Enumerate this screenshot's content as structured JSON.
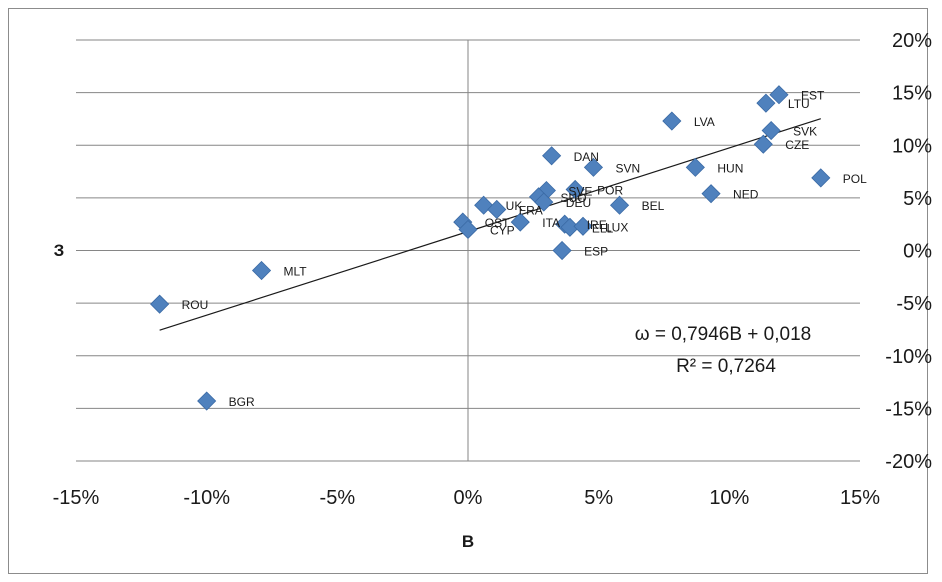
{
  "chart_data": {
    "type": "scatter",
    "title": "",
    "xlabel": "B",
    "ylabel": "З",
    "xlim": [
      -0.15,
      0.15
    ],
    "ylim": [
      -0.2,
      0.2
    ],
    "x_ticks": [
      -0.15,
      -0.1,
      -0.05,
      0,
      0.05,
      0.1,
      0.15
    ],
    "x_tick_labels": [
      "-15%",
      "-10%",
      "-5%",
      "0%",
      "5%",
      "10%",
      "15%"
    ],
    "y_ticks": [
      0.2,
      0.15,
      0.1,
      0.05,
      0,
      -0.05,
      -0.1,
      -0.15,
      -0.2
    ],
    "y_tick_labels": [
      "20%",
      "15%",
      "10%",
      "5%",
      "0%",
      "-5%",
      "-10%",
      "-15%",
      "-20%"
    ],
    "grid": "horizontal",
    "marker_color": "#4f81bd",
    "points": [
      {
        "label": "EST",
        "x": 0.119,
        "y": 0.148
      },
      {
        "label": "LTU",
        "x": 0.114,
        "y": 0.14
      },
      {
        "label": "LVA",
        "x": 0.078,
        "y": 0.123
      },
      {
        "label": "SVK",
        "x": 0.116,
        "y": 0.114
      },
      {
        "label": "CZE",
        "x": 0.113,
        "y": 0.101
      },
      {
        "label": "DAN",
        "x": 0.032,
        "y": 0.09
      },
      {
        "label": "SVN",
        "x": 0.048,
        "y": 0.079
      },
      {
        "label": "HUN",
        "x": 0.087,
        "y": 0.079
      },
      {
        "label": "POL",
        "x": 0.135,
        "y": 0.069
      },
      {
        "label": "NED",
        "x": 0.093,
        "y": 0.054
      },
      {
        "label": "POR",
        "x": 0.041,
        "y": 0.058
      },
      {
        "label": "SVE",
        "x": 0.03,
        "y": 0.057
      },
      {
        "label": "SUO",
        "x": 0.027,
        "y": 0.051
      },
      {
        "label": "DEU",
        "x": 0.029,
        "y": 0.046
      },
      {
        "label": "BEL",
        "x": 0.058,
        "y": 0.043
      },
      {
        "label": "UK",
        "x": 0.006,
        "y": 0.043
      },
      {
        "label": "FRA",
        "x": 0.011,
        "y": 0.039
      },
      {
        "label": "OST",
        "x": -0.002,
        "y": 0.027
      },
      {
        "label": "CYP",
        "x": 0.0,
        "y": 0.02
      },
      {
        "label": "ITA",
        "x": 0.02,
        "y": 0.027
      },
      {
        "label": "IRE",
        "x": 0.037,
        "y": 0.025
      },
      {
        "label": "ELL",
        "x": 0.039,
        "y": 0.022
      },
      {
        "label": "LUX",
        "x": 0.044,
        "y": 0.023
      },
      {
        "label": "ESP",
        "x": 0.036,
        "y": 0.0
      },
      {
        "label": "MLT",
        "x": -0.079,
        "y": -0.019
      },
      {
        "label": "ROU",
        "x": -0.118,
        "y": -0.051
      },
      {
        "label": "BGR",
        "x": -0.1,
        "y": -0.143
      }
    ],
    "trendline": {
      "slope": 0.7946,
      "intercept": 0.018,
      "x_range": [
        -0.118,
        0.135
      ]
    },
    "equation_line1": "ω = 0,7946B + 0,018",
    "equation_line2": "R² = 0,7264"
  }
}
